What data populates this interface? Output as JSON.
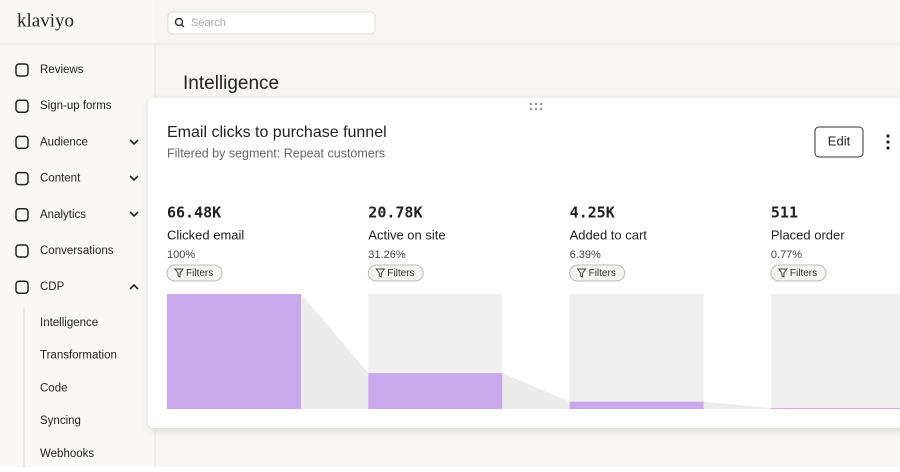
{
  "header": {
    "logo": "klaviyo",
    "search_placeholder": "Search"
  },
  "sidebar": {
    "items": [
      "Reviews",
      "Sign-up forms",
      "Audience",
      "Content",
      "Analytics",
      "Conversations",
      "CDP"
    ],
    "subitems": [
      "Intelligence",
      "Transformation",
      "Code",
      "Syncing",
      "Webhooks"
    ]
  },
  "page_title": "Intelligence",
  "card": {
    "title": "Email clicks to purchase funnel",
    "subtitle": "Filtered by segment: Repeat customers",
    "edit_button": "Edit",
    "chart_data": {
      "type": "funnel",
      "categories": [
        "Clicked email",
        "Active on site",
        "Added to cart",
        "Placed order"
      ],
      "counts": [
        "66.48K",
        "20.78K",
        "4.25K",
        "511"
      ],
      "values": [
        100,
        31.26,
        6.39,
        0.77
      ],
      "value_labels": [
        "100%",
        "31.26%",
        "6.39%",
        "0.77%"
      ],
      "filter_button": "Filters",
      "color": "#c9a9ec"
    }
  }
}
